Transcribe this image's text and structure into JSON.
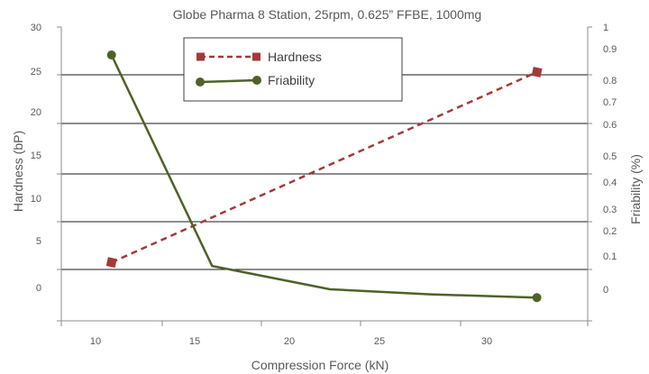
{
  "chart_data": {
    "type": "line",
    "title": "Globe Pharma 8 Station, 25rpm, 0.625” FFBE, 1000mg",
    "xlabel": "Compression Force (kN)",
    "ylabel": "Hardness (bP)",
    "y2label": "Friability (%)",
    "x_ticks": [
      "10",
      "15",
      "20",
      "25",
      "30"
    ],
    "y_ticks": [
      "30",
      "25",
      "20",
      "15",
      "10",
      "5",
      "0"
    ],
    "y2_ticks": [
      "1",
      "0.9",
      "0.8",
      "0.7",
      "0.6",
      "0.5",
      "0.4",
      "0.3",
      "0.2",
      "0.1",
      "0"
    ],
    "legend_position": "top-center",
    "grid": true,
    "series": [
      {
        "name": "Hardness",
        "axis": "left",
        "color": "#a33a3a",
        "line_style": "dashed",
        "marker": "square",
        "x": [
          10.5,
          32.5
        ],
        "y": [
          3,
          25
        ]
      },
      {
        "name": "Friability",
        "axis": "right",
        "color": "#4f6228",
        "line_style": "solid",
        "marker": "circle",
        "x": [
          10.5,
          15.7,
          21.8,
          27,
          32.5
        ],
        "y": [
          0.88,
          0.07,
          0.0,
          -0.015,
          -0.025
        ]
      }
    ]
  }
}
